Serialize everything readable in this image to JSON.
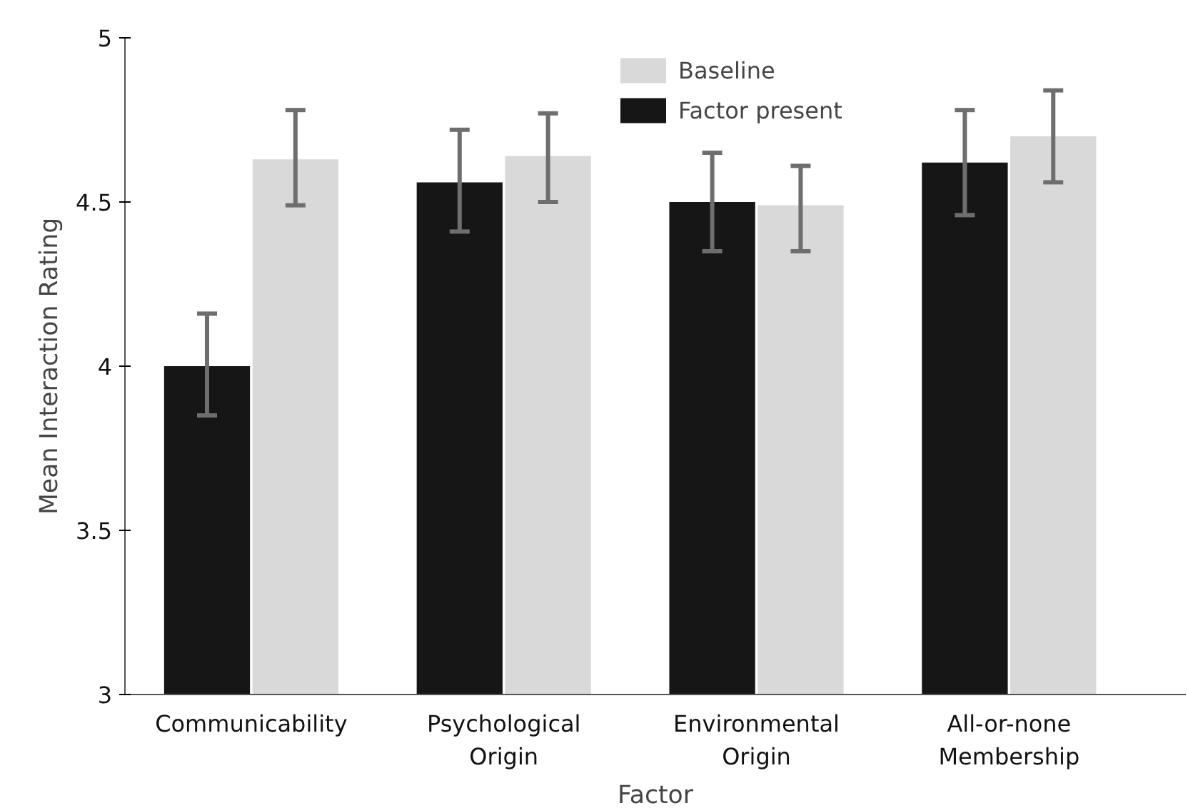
{
  "chart_data": {
    "type": "bar",
    "xlabel": "Factor",
    "ylabel": "Mean Interaction Rating",
    "categories": [
      "Communicability",
      "Psychological Origin",
      "Environmental Origin",
      "All-or-none Membership"
    ],
    "series": [
      {
        "name": "Factor present",
        "color": "#161616",
        "values": [
          4.0,
          4.56,
          4.5,
          4.62
        ],
        "errors": [
          [
            3.85,
            4.16
          ],
          [
            4.41,
            4.72
          ],
          [
            4.35,
            4.65
          ],
          [
            4.46,
            4.78
          ]
        ]
      },
      {
        "name": "Baseline",
        "color": "#d9d9d9",
        "values": [
          4.63,
          4.64,
          4.49,
          4.7
        ],
        "errors": [
          [
            4.49,
            4.78
          ],
          [
            4.5,
            4.77
          ],
          [
            4.35,
            4.61
          ],
          [
            4.56,
            4.84
          ]
        ]
      }
    ],
    "ylim": [
      3,
      5
    ],
    "yticks": [
      3,
      3.5,
      4,
      4.5,
      5
    ],
    "legend": "top right",
    "grid": false
  }
}
